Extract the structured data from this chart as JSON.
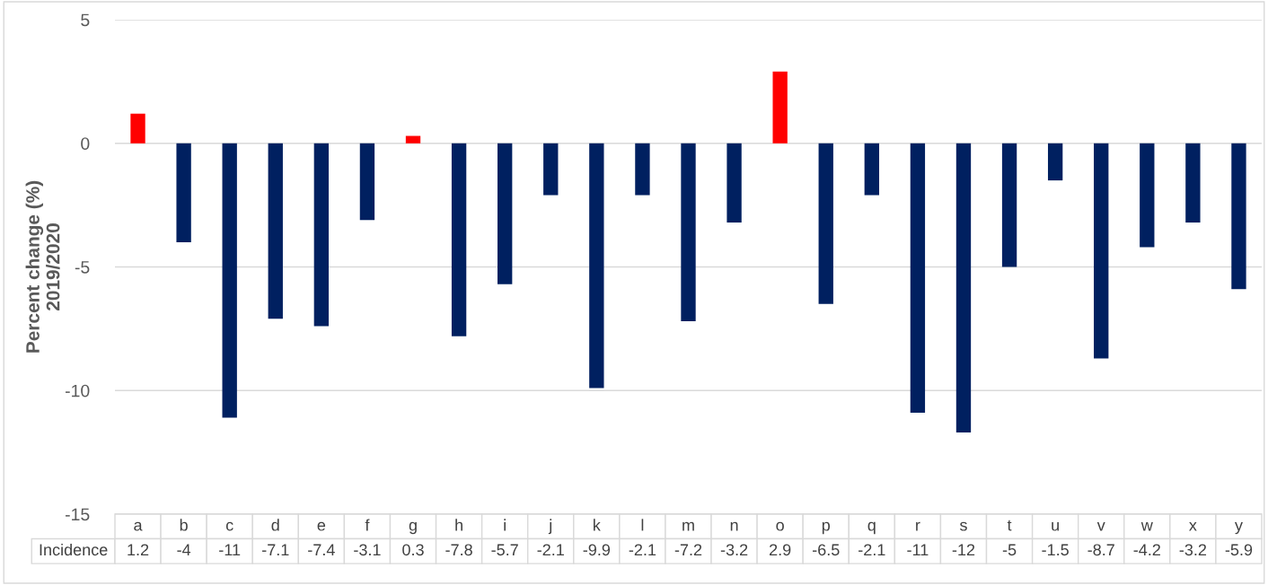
{
  "chart_data": {
    "type": "bar",
    "ylabel": "Percent change (%)\n2019/2020",
    "categories": [
      "a",
      "b",
      "c",
      "d",
      "e",
      "f",
      "g",
      "h",
      "i",
      "j",
      "k",
      "l",
      "m",
      "n",
      "o",
      "p",
      "q",
      "r",
      "s",
      "t",
      "u",
      "v",
      "w",
      "x",
      "y"
    ],
    "series": [
      {
        "name": "Incidence",
        "values": [
          1.2,
          -4,
          -11.1,
          -7.1,
          -7.4,
          -3.1,
          0.3,
          -7.8,
          -5.7,
          -2.1,
          -9.9,
          -2.1,
          -7.2,
          -3.2,
          2.9,
          -6.5,
          -2.1,
          -10.9,
          -11.7,
          -5,
          -1.5,
          -8.7,
          -4.2,
          -3.2,
          -5.9
        ],
        "colors": [
          "#ff0000",
          "#002060",
          "#002060",
          "#002060",
          "#002060",
          "#002060",
          "#ff0000",
          "#002060",
          "#002060",
          "#002060",
          "#002060",
          "#002060",
          "#002060",
          "#002060",
          "#ff0000",
          "#002060",
          "#002060",
          "#002060",
          "#002060",
          "#002060",
          "#002060",
          "#002060",
          "#002060",
          "#002060",
          "#002060"
        ],
        "value_labels": [
          "1.2",
          "-4",
          "-11",
          "-7.1",
          "-7.4",
          "-3.1",
          "0.3",
          "-7.8",
          "-5.7",
          "-2.1",
          "-9.9",
          "-2.1",
          "-7.2",
          "-3.2",
          "2.9",
          "-6.5",
          "-2.1",
          "-11",
          "-12",
          "-5",
          "-1.5",
          "-8.7",
          "-4.2",
          "-3.2",
          "-5.9"
        ]
      }
    ],
    "ylim": [
      -15,
      5
    ],
    "yticks": [
      -15,
      -10,
      -5,
      0,
      5
    ],
    "grid": "y",
    "legend": false
  }
}
